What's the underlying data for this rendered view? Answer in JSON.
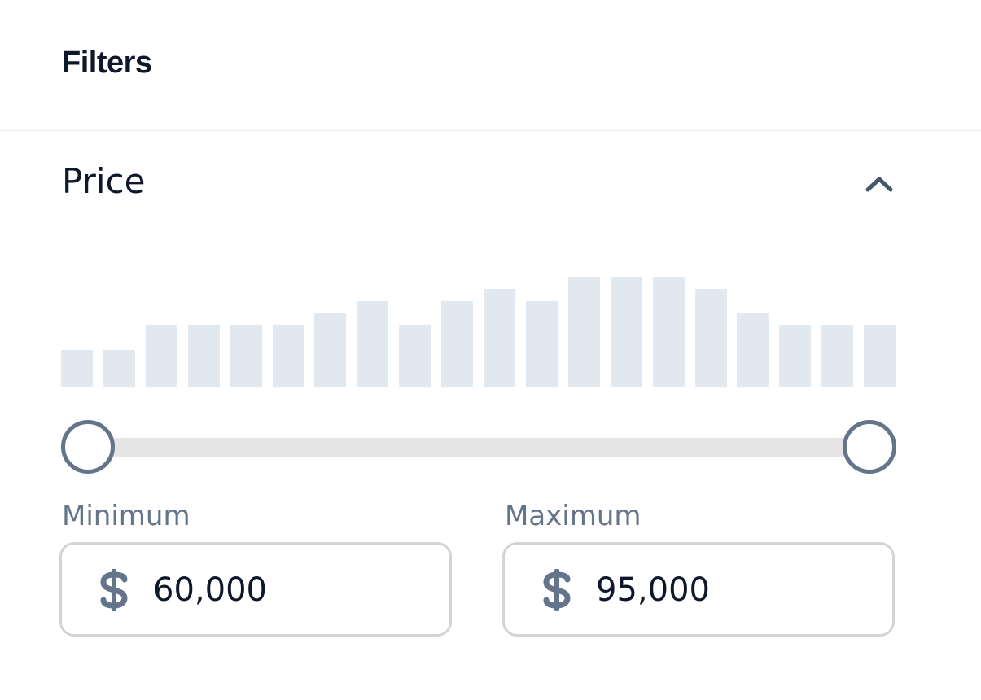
{
  "header": {
    "title": "Filters"
  },
  "price_section": {
    "title": "Price",
    "collapse_icon": "chevron-up-icon",
    "histogram": {
      "relative_heights": [
        0.33,
        0.33,
        0.56,
        0.56,
        0.56,
        0.56,
        0.67,
        0.78,
        0.56,
        0.78,
        0.89,
        0.78,
        1.0,
        1.0,
        1.0,
        0.89,
        0.67,
        0.56,
        0.56,
        0.56
      ]
    },
    "slider": {
      "min_position": 0,
      "max_position": 1
    },
    "minimum": {
      "label": "Minimum",
      "currency_icon": "dollar-icon",
      "value": "60,000"
    },
    "maximum": {
      "label": "Maximum",
      "currency_icon": "dollar-icon",
      "value": "95,000"
    }
  },
  "colors": {
    "title_text": "#0f172a",
    "muted": "#64748b",
    "bar": "#e2e8f0",
    "track": "#e5e5e5",
    "field_border": "#d4d4d4"
  }
}
